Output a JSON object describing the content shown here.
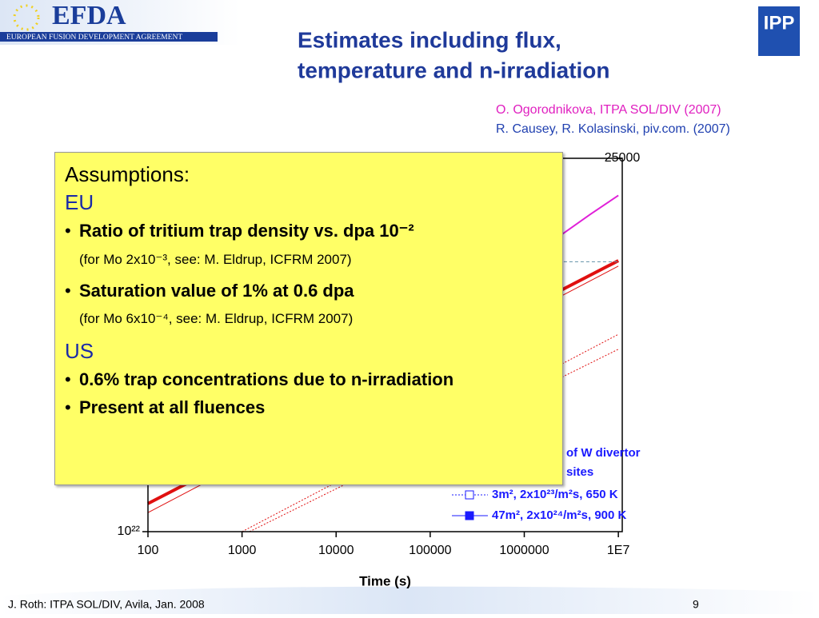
{
  "header": {
    "logo_text": "EFDA",
    "logo_subtitle": "EUROPEAN FUSION DEVELOPMENT AGREEMENT",
    "right_logo": "IPP"
  },
  "title": [
    "Estimates including flux,",
    "temperature and n-irradiation"
  ],
  "references": [
    "O. Ogorodnikova, ITPA SOL/DIV (2007)",
    "R. Causey, R. Kolasinski, piv.com. (2007)"
  ],
  "chart_data": {
    "type": "line",
    "x_label": "Time (s)",
    "x_log": true,
    "y_log": true,
    "xlim": [
      100,
      11000000
    ],
    "xticks": [
      100,
      1000,
      10000,
      100000,
      1000000,
      {
        "value": 10000000,
        "label": "1E7"
      }
    ],
    "ylim": [
      1e+22,
      1e+26
    ],
    "yticks": [
      {
        "value": 1e+22,
        "label": "10²²"
      }
    ],
    "y2lim": [
      0,
      25000
    ],
    "y2ticks": [
      25000
    ],
    "legend_title": [
      "of W divertor",
      "sites"
    ],
    "legend_position": "lower right",
    "series": [
      {
        "color": "#e020d8",
        "style": "solid",
        "width": 2,
        "x": [
          2000000,
          5000000,
          10000000
        ],
        "values": [
          1.3e+25,
          2.5e+25,
          4e+25
        ]
      },
      {
        "name": "47m², 2x10²⁴/m²s, 900 K",
        "marker": "square",
        "color": "#e01010",
        "style": "solid",
        "width": 4,
        "x": [
          100,
          10000000
        ],
        "values": [
          2e+22,
          8e+24
        ]
      },
      {
        "color": "#e01010",
        "style": "solid",
        "width": 1,
        "x": [
          100,
          10000000
        ],
        "values": [
          1.6e+22,
          7e+24
        ]
      },
      {
        "name": "3m², 2x10²³/m²s, 650 K",
        "marker": "square-open",
        "color": "#e01010",
        "style": "dotted",
        "width": 1,
        "x": [
          1000,
          10000000
        ],
        "values": [
          1e+22,
          1.3e+24
        ]
      },
      {
        "color": "#e01010",
        "style": "dotted",
        "width": 1,
        "x": [
          1200,
          10000000
        ],
        "values": [
          1e+22,
          9e+23
        ]
      },
      {
        "color": "#6090a8",
        "style": "dashed",
        "width": 1,
        "x": [
          2000000,
          10000000
        ],
        "values": [
          7.8e+24,
          7.8e+24
        ]
      }
    ]
  },
  "assumptions": {
    "heading": "Assumptions:",
    "sections": [
      {
        "title": "EU",
        "items": [
          {
            "text": "Ratio of tritium trap density vs. dpa 10⁻²",
            "note": "(for Mo 2x10⁻³, see: M. Eldrup, ICFRM 2007)"
          },
          {
            "text": "Saturation value of 1% at 0.6 dpa",
            "note": "(for Mo 6x10⁻⁴, see: M. Eldrup, ICFRM 2007)"
          }
        ]
      },
      {
        "title": "US",
        "items": [
          {
            "text": "0.6% trap concentrations due to n-irradiation"
          },
          {
            "text": "Present at all fluences"
          }
        ]
      }
    ]
  },
  "footer": {
    "left": "J. Roth: ITPA SOL/DIV, Avila, Jan. 2008",
    "page": "9"
  }
}
